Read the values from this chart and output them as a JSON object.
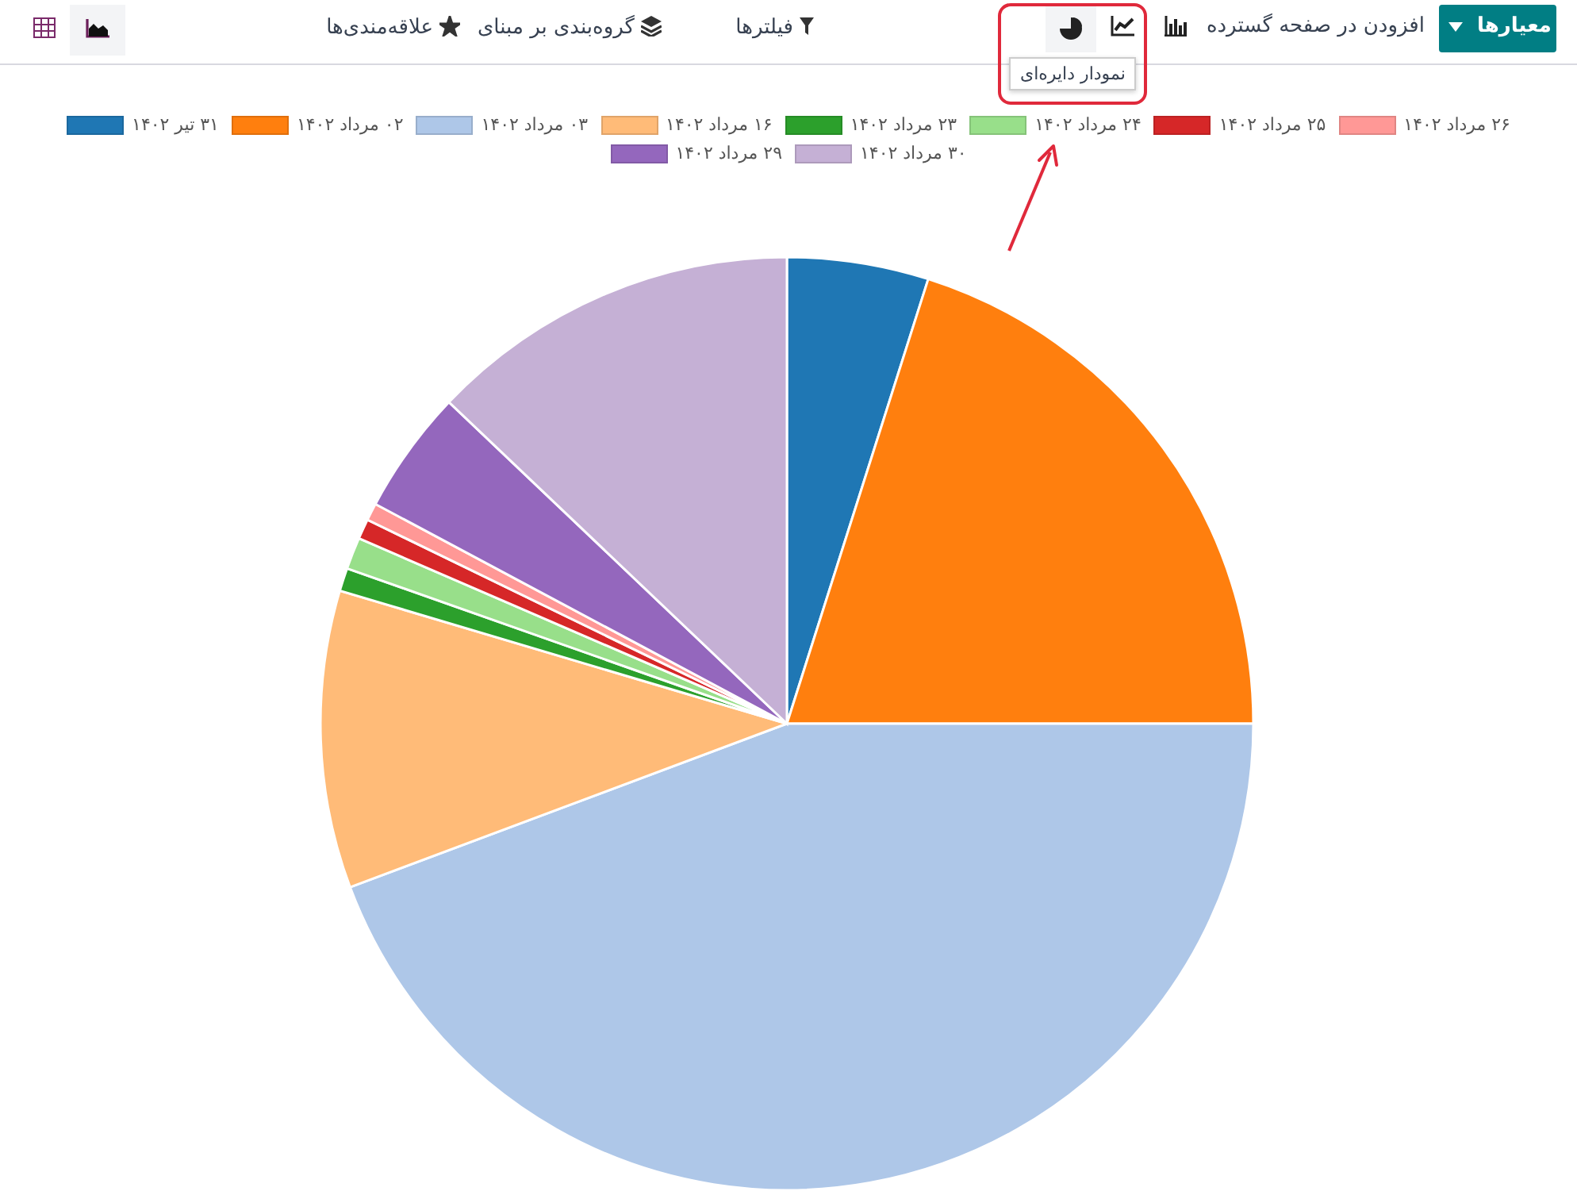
{
  "chart_data": {
    "type": "pie",
    "categories": [
      "۳۱ تیر ۱۴۰۲",
      "۰۲ مرداد ۱۴۰۲",
      "۰۳ مرداد ۱۴۰۲",
      "۱۶ مرداد ۱۴۰۲",
      "۲۳ مرداد ۱۴۰۲",
      "۲۴ مرداد ۱۴۰۲",
      "۲۵ مرداد ۱۴۰۲",
      "۲۶ مرداد ۱۴۰۲",
      "۲۹ مرداد ۱۴۰۲",
      "۳۰ مرداد ۱۴۰۲"
    ],
    "values": [
      4.9,
      20.1,
      44.3,
      10.3,
      0.8,
      1.1,
      0.7,
      0.6,
      4.3,
      12.9
    ],
    "colors": [
      "#1f77b4",
      "#ff7f0e",
      "#aec7e8",
      "#ffbb78",
      "#2ca02c",
      "#98df8a",
      "#d62728",
      "#ff9896",
      "#9467bd",
      "#c5b0d5"
    ],
    "legend": "top",
    "annotations": [
      "معیارها",
      "افزودن در صفحه گسترده",
      "فیلترها",
      "گروه‌بندی بر مبنای",
      "علاقه‌مندی‌ها",
      "نمودار دایره‌ای"
    ]
  }
}
